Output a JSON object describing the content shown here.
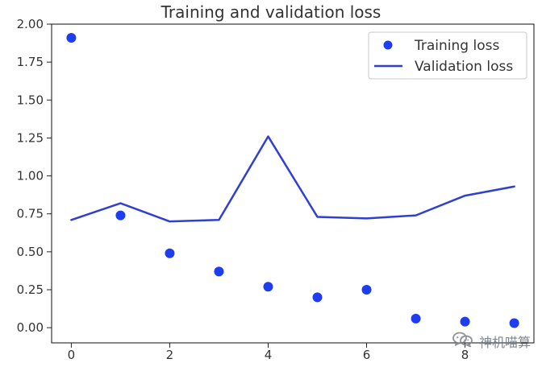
{
  "chart_data": {
    "type": "line",
    "title": "Training and validation loss",
    "xlabel": "",
    "ylabel": "",
    "xlim": [
      -0.4,
      9.4
    ],
    "ylim": [
      -0.1,
      2.0
    ],
    "x_ticks": [
      0,
      2,
      4,
      6,
      8
    ],
    "y_ticks": [
      0.0,
      0.25,
      0.5,
      0.75,
      1.0,
      1.25,
      1.5,
      1.75,
      2.0
    ],
    "x": [
      0,
      1,
      2,
      3,
      4,
      5,
      6,
      7,
      8,
      9
    ],
    "series": [
      {
        "name": "Training loss",
        "type": "scatter",
        "values": [
          1.91,
          0.74,
          0.49,
          0.37,
          0.27,
          0.2,
          0.25,
          0.06,
          0.04,
          0.03
        ]
      },
      {
        "name": "Validation loss",
        "type": "line",
        "values": [
          0.71,
          0.82,
          0.7,
          0.71,
          1.26,
          0.73,
          0.72,
          0.74,
          0.87,
          0.93
        ]
      }
    ],
    "legend_position": "top-right",
    "grid": false,
    "colors": {
      "training": "#1f3df0",
      "validation": "#2f3fd2",
      "axis": "#222222",
      "text": "#333333"
    }
  },
  "watermark": {
    "text": "神机喵算",
    "icon": "wechat-icon"
  }
}
